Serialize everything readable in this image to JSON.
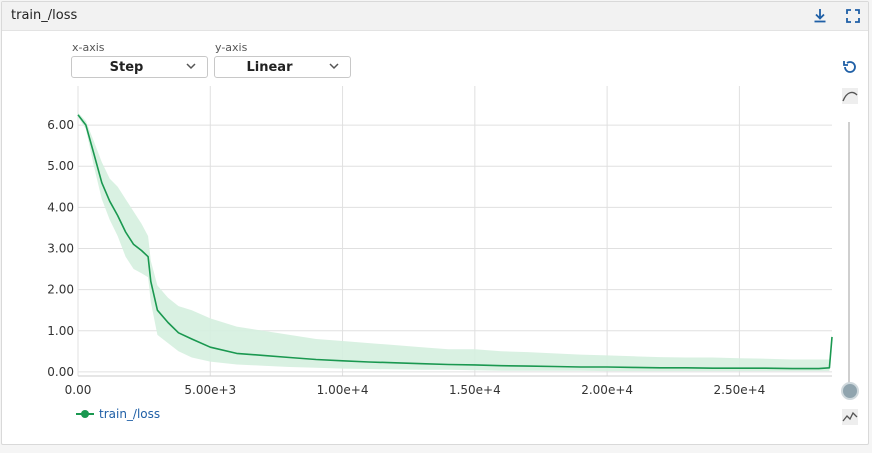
{
  "panel": {
    "title": "train_/loss"
  },
  "icons": {
    "download": "download-icon",
    "fullscreen": "fullscreen-icon",
    "reset": "reset-icon",
    "smoothing": "smoothing-icon",
    "raw": "raw-icon",
    "chevron": "chevron-down-icon",
    "slider": "slider-handle"
  },
  "controls": {
    "x_axis": {
      "label": "x-axis",
      "value": "Step"
    },
    "y_axis": {
      "label": "y-axis",
      "value": "Linear"
    }
  },
  "legend": {
    "label": "train_/loss",
    "color": "#1a9850"
  },
  "chart_data": {
    "type": "line",
    "xlabel": "",
    "ylabel": "",
    "xlim": [
      0,
      28500
    ],
    "ylim": [
      -0.1,
      6.95
    ],
    "x_ticks": [
      0,
      5000,
      10000,
      15000,
      20000,
      25000
    ],
    "x_tick_labels": [
      "0.00",
      "5.00e+3",
      "1.00e+4",
      "1.50e+4",
      "2.00e+4",
      "2.50e+4"
    ],
    "y_ticks": [
      0,
      1,
      2,
      3,
      4,
      5,
      6
    ],
    "y_tick_labels": [
      "0.00",
      "1.00",
      "2.00",
      "3.00",
      "4.00",
      "5.00",
      "6.00"
    ],
    "grid": true,
    "series": [
      {
        "name": "train_/loss",
        "color": "#1a9850",
        "band_color": "#d5efdf",
        "x": [
          0,
          300,
          600,
          900,
          1200,
          1500,
          1800,
          2100,
          2400,
          2650,
          2750,
          3000,
          3400,
          3800,
          4300,
          5000,
          6000,
          7000,
          8000,
          9000,
          10000,
          11000,
          12000,
          13000,
          14000,
          15000,
          16000,
          17000,
          18000,
          19000,
          20000,
          21000,
          22000,
          23000,
          24000,
          25000,
          26000,
          27000,
          28000,
          28400,
          28500
        ],
        "values": [
          6.25,
          6.0,
          5.3,
          4.6,
          4.15,
          3.8,
          3.4,
          3.1,
          2.95,
          2.8,
          2.2,
          1.5,
          1.2,
          0.95,
          0.8,
          0.6,
          0.45,
          0.4,
          0.35,
          0.3,
          0.27,
          0.24,
          0.22,
          0.2,
          0.18,
          0.17,
          0.15,
          0.14,
          0.13,
          0.12,
          0.12,
          0.11,
          0.1,
          0.1,
          0.09,
          0.09,
          0.09,
          0.08,
          0.08,
          0.1,
          0.85
        ],
        "band_upper": [
          6.3,
          6.1,
          5.6,
          5.1,
          4.7,
          4.5,
          4.2,
          3.9,
          3.6,
          3.3,
          2.7,
          2.1,
          1.8,
          1.6,
          1.5,
          1.3,
          1.1,
          1.0,
          0.9,
          0.8,
          0.75,
          0.7,
          0.65,
          0.6,
          0.55,
          0.55,
          0.5,
          0.48,
          0.45,
          0.42,
          0.4,
          0.38,
          0.36,
          0.35,
          0.35,
          0.33,
          0.32,
          0.3,
          0.3,
          0.3,
          0.9
        ],
        "band_lower": [
          6.2,
          5.9,
          5.0,
          4.2,
          3.7,
          3.3,
          2.8,
          2.5,
          2.4,
          2.3,
          1.7,
          0.9,
          0.7,
          0.5,
          0.35,
          0.25,
          0.18,
          0.15,
          0.12,
          0.1,
          0.08,
          0.07,
          0.06,
          0.05,
          0.05,
          0.04,
          0.03,
          0.03,
          0.03,
          0.03,
          0.02,
          0.02,
          0.02,
          0.02,
          0.02,
          0.02,
          0.02,
          0.02,
          0.02,
          0.02,
          0.8
        ]
      }
    ]
  }
}
